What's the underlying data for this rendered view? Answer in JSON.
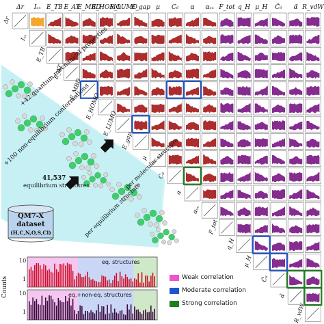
{
  "variables": [
    "Δr",
    "I_xx",
    "E_TB",
    "E_AT",
    "E_MBD",
    "E_HOMO",
    "E_LUMO",
    "E_gap",
    "μ",
    "C6",
    "α",
    "α_xx",
    "F_tot",
    "q_H",
    "μ_H",
    "C̃6",
    "α̃",
    "R_vdW"
  ],
  "labels": [
    "Δr",
    "Iₓₓ",
    "E_TB",
    "E_AT",
    "E_MBD",
    "E_HOMO",
    "E_LUMO",
    "E_gap",
    "μ",
    "C₆",
    "α",
    "αₓₓ",
    "F_tot",
    "q_H",
    "μ_H",
    "C̃₆",
    "α̃",
    "R_vdW"
  ],
  "colors": {
    "orange": "#f2a01a",
    "molecular": "#a51b1b",
    "atomic": "#7b1a86",
    "weak": "#ee55cc",
    "moderate": "#1f55cc",
    "strong": "#1d7f1d",
    "cyan_band": "#bfeef2"
  },
  "highlights": [
    {
      "row": 4,
      "col": 4,
      "level": "moderate"
    },
    {
      "row": 4,
      "col": 9,
      "level": "moderate"
    },
    {
      "row": 4,
      "col": 10,
      "level": "moderate"
    },
    {
      "row": 6,
      "col": 7,
      "level": "moderate"
    },
    {
      "row": 9,
      "col": 10,
      "level": "strong"
    },
    {
      "row": 15,
      "col": 16,
      "level": "strong"
    },
    {
      "row": 15,
      "col": 17,
      "level": "strong"
    },
    {
      "row": 16,
      "col": 17,
      "level": "strong"
    },
    {
      "row": 14,
      "col": 15,
      "level": "moderate"
    },
    {
      "row": 13,
      "col": 14,
      "level": "moderate"
    }
  ],
  "overlay": {
    "quantum_props": "+42 quantum mechanical properties",
    "non_eq": "+100 non-equilibrium conformations",
    "per_molecular": "per molecular structure",
    "per_equilibrium": "per equilibrium structure",
    "count": "41,537",
    "eq_structures": "equilibrium structures",
    "dataset_title": "QM7-X",
    "dataset_word": "dataset",
    "dataset_atoms": "(H,C,N,O,S,Cl)"
  },
  "histogram": {
    "ylabel": "Counts",
    "tick_10": "10",
    "tick_1": "1",
    "eq_label": "eq. structures",
    "noneq_label": "eq.+non-eq. structures"
  },
  "legend": {
    "weak": "Weak correlation",
    "moderate": "Moderate correlation",
    "strong": "Strong correlation"
  }
}
